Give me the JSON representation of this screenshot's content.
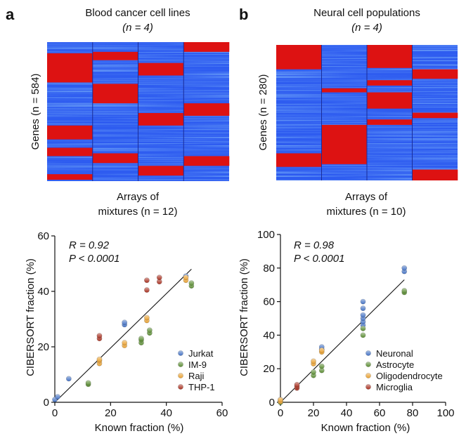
{
  "panels": [
    {
      "letter": "a",
      "heatmap": {
        "title": "Blood cancer cell lines",
        "n_label": "(n = 4)",
        "ylabel": "Genes (n = 584)",
        "columns": 4,
        "red_blocks": [
          {
            "col": 0,
            "from": 0.08,
            "to": 0.29
          },
          {
            "col": 0,
            "from": 0.6,
            "to": 0.7
          },
          {
            "col": 0,
            "from": 0.76,
            "to": 0.82
          },
          {
            "col": 0,
            "from": 0.95,
            "to": 0.99
          },
          {
            "col": 1,
            "from": 0.07,
            "to": 0.13
          },
          {
            "col": 1,
            "from": 0.3,
            "to": 0.44
          },
          {
            "col": 1,
            "from": 0.8,
            "to": 0.87
          },
          {
            "col": 2,
            "from": 0.15,
            "to": 0.24
          },
          {
            "col": 2,
            "from": 0.51,
            "to": 0.6
          },
          {
            "col": 2,
            "from": 0.89,
            "to": 0.96
          },
          {
            "col": 3,
            "from": 0.0,
            "to": 0.07
          },
          {
            "col": 3,
            "from": 0.44,
            "to": 0.53
          },
          {
            "col": 3,
            "from": 0.82,
            "to": 0.89
          }
        ]
      },
      "subtitle_line1": "Arrays of",
      "subtitle_line2": "mixtures (n = 12)",
      "chart_data": {
        "type": "scatter",
        "xlabel": "Known fraction (%)",
        "ylabel": "CIBERSORT fraction (%)",
        "xlim": [
          0,
          60
        ],
        "ylim": [
          0,
          60
        ],
        "xticks": [
          "0",
          "20",
          "40",
          "60"
        ],
        "yticks": [
          "0",
          "20",
          "40",
          "60"
        ],
        "stat_r": "R = 0.92",
        "stat_p": "P < 0.0001",
        "fit_line": {
          "x": [
            0,
            49
          ],
          "y": [
            0,
            48
          ]
        },
        "legend_position": "bottom-right",
        "series": [
          {
            "name": "Jurkat",
            "color": "#4472c4",
            "x": [
              0,
              1,
              5,
              25,
              25,
              47
            ],
            "y": [
              1,
              2,
              8.5,
              28,
              28.8,
              45.5
            ]
          },
          {
            "name": "IM-9",
            "color": "#5a8c32",
            "x": [
              12,
              12,
              31,
              31,
              31,
              34,
              34,
              49,
              49
            ],
            "y": [
              6.5,
              7,
              21.5,
              22.5,
              23,
              25,
              26,
              42,
              43
            ]
          },
          {
            "name": "Raji",
            "color": "#e8a030",
            "x": [
              16,
              16,
              16,
              25,
              25,
              33,
              33,
              47,
              47
            ],
            "y": [
              14,
              15,
              15.5,
              20.5,
              21.5,
              29.5,
              30.5,
              44,
              45
            ]
          },
          {
            "name": "THP-1",
            "color": "#a83020",
            "x": [
              16,
              16,
              33,
              33,
              37.5,
              37.5
            ],
            "y": [
              23,
              24,
              40.5,
              44,
              43.5,
              45
            ]
          }
        ]
      }
    },
    {
      "letter": "b",
      "heatmap": {
        "title": "Neural cell populations",
        "n_label": "(n = 4)",
        "ylabel": "Genes (n = 280)",
        "columns": 4,
        "red_blocks": [
          {
            "col": 0,
            "from": 0.0,
            "to": 0.18
          },
          {
            "col": 0,
            "from": 0.8,
            "to": 0.9
          },
          {
            "col": 1,
            "from": 0.32,
            "to": 0.35
          },
          {
            "col": 1,
            "from": 0.59,
            "to": 0.88
          },
          {
            "col": 2,
            "from": 0.0,
            "to": 0.17
          },
          {
            "col": 2,
            "from": 0.26,
            "to": 0.3
          },
          {
            "col": 2,
            "from": 0.35,
            "to": 0.47
          },
          {
            "col": 2,
            "from": 0.55,
            "to": 0.59
          },
          {
            "col": 3,
            "from": 0.18,
            "to": 0.25
          },
          {
            "col": 3,
            "from": 0.5,
            "to": 0.54
          },
          {
            "col": 3,
            "from": 0.92,
            "to": 1.0
          }
        ]
      },
      "subtitle_line1": "Arrays of",
      "subtitle_line2": "mixtures (n = 10)",
      "chart_data": {
        "type": "scatter",
        "xlabel": "Known fraction (%)",
        "ylabel": "CIBERSORT fraction (%)",
        "xlim": [
          0,
          100
        ],
        "ylim": [
          0,
          100
        ],
        "xticks": [
          "0",
          "20",
          "40",
          "60",
          "80",
          "100"
        ],
        "yticks": [
          "0",
          "20",
          "40",
          "60",
          "80",
          "100"
        ],
        "stat_r": "R = 0.98",
        "stat_p": "P < 0.0001",
        "fit_line": {
          "x": [
            0,
            75
          ],
          "y": [
            0,
            73
          ]
        },
        "legend_position": "bottom-right",
        "series": [
          {
            "name": "Neuronal",
            "color": "#4472c4",
            "x": [
              0,
              0,
              25,
              25,
              50,
              50,
              50,
              50,
              50,
              50,
              75,
              75
            ],
            "y": [
              0.5,
              1.5,
              31.5,
              33,
              46,
              48,
              50,
              52,
              56,
              60,
              78,
              80
            ]
          },
          {
            "name": "Astrocyte",
            "color": "#5a8c32",
            "x": [
              0,
              20,
              20,
              25,
              25,
              50,
              50,
              75,
              75
            ],
            "y": [
              0,
              16,
              18,
              19,
              21.5,
              40,
              44,
              65.5,
              66.5
            ]
          },
          {
            "name": "Oligodendrocyte",
            "color": "#e8a030",
            "x": [
              0,
              0,
              20,
              20,
              25,
              25
            ],
            "y": [
              0.5,
              1.5,
              23,
              24.5,
              30,
              31
            ]
          },
          {
            "name": "Microglia",
            "color": "#a83020",
            "x": [
              10,
              10,
              10
            ],
            "y": [
              8.5,
              9.5,
              10.5
            ]
          }
        ]
      }
    }
  ]
}
